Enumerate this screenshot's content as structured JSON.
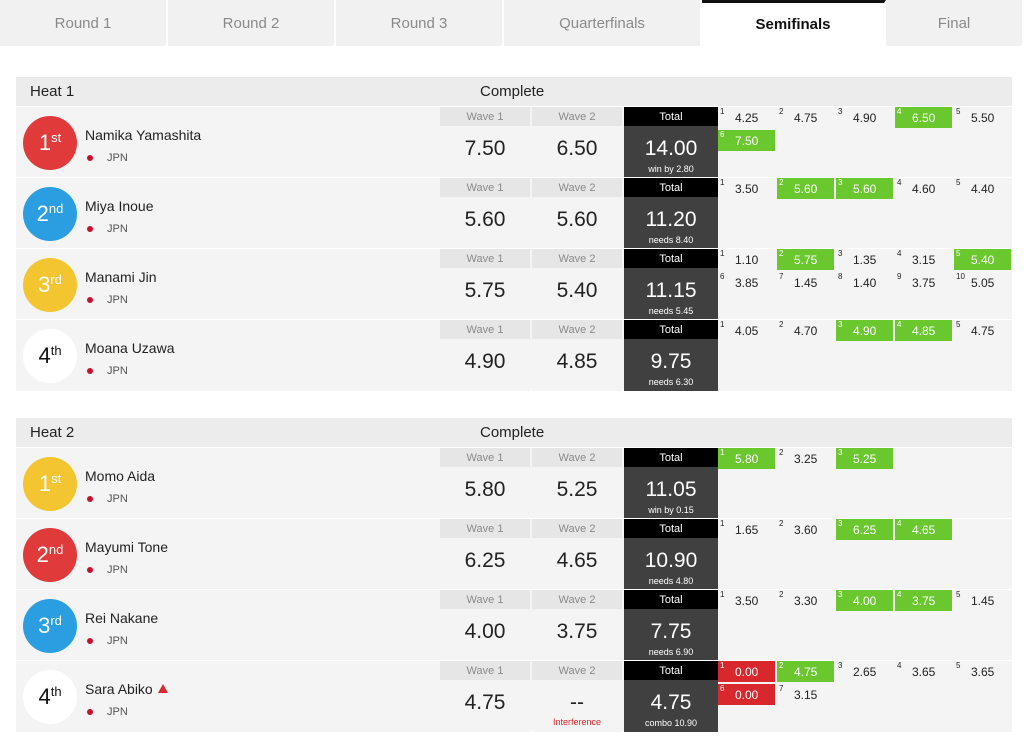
{
  "tabs": [
    {
      "label": "Round 1",
      "active": false
    },
    {
      "label": "Round 2",
      "active": false
    },
    {
      "label": "Round 3",
      "active": false
    },
    {
      "label": "Quarterfinals",
      "active": false
    },
    {
      "label": "Semifinals",
      "active": true
    },
    {
      "label": "Final",
      "active": false
    }
  ],
  "colors": {
    "red": "#e03a3a",
    "blue": "#2a9ee0",
    "yellow": "#f2c531",
    "white": "#ffffff",
    "green_score": "#6bc72e",
    "red_score": "#d9272e",
    "total_bg": "#404040"
  },
  "labels": {
    "wave1": "Wave 1",
    "wave2": "Wave 2",
    "total": "Total"
  },
  "heats": [
    {
      "name": "Heat 1",
      "status": "Complete",
      "athletes": [
        {
          "place": "1",
          "suffix": "st",
          "color": "red",
          "name": "Namika Yamashita",
          "country": "JPN",
          "warning": false,
          "wave1": "7.50",
          "wave2": "6.50",
          "wave2_note": "",
          "total": "14.00",
          "sub": "win by 2.80",
          "scores": [
            {
              "i": "1",
              "v": "4.25",
              "s": ""
            },
            {
              "i": "2",
              "v": "4.75",
              "s": ""
            },
            {
              "i": "3",
              "v": "4.90",
              "s": ""
            },
            {
              "i": "4",
              "v": "6.50",
              "s": "green"
            },
            {
              "i": "5",
              "v": "5.50",
              "s": ""
            },
            {
              "i": "6",
              "v": "7.50",
              "s": "green"
            }
          ]
        },
        {
          "place": "2",
          "suffix": "nd",
          "color": "blue",
          "name": "Miya Inoue",
          "country": "JPN",
          "warning": false,
          "wave1": "5.60",
          "wave2": "5.60",
          "wave2_note": "",
          "total": "11.20",
          "sub": "needs 8.40",
          "scores": [
            {
              "i": "1",
              "v": "3.50",
              "s": ""
            },
            {
              "i": "2",
              "v": "5.60",
              "s": "green"
            },
            {
              "i": "3",
              "v": "5.60",
              "s": "green"
            },
            {
              "i": "4",
              "v": "4.60",
              "s": ""
            },
            {
              "i": "5",
              "v": "4.40",
              "s": ""
            }
          ]
        },
        {
          "place": "3",
          "suffix": "rd",
          "color": "yellow",
          "name": "Manami Jin",
          "country": "JPN",
          "warning": false,
          "wave1": "5.75",
          "wave2": "5.40",
          "wave2_note": "",
          "total": "11.15",
          "sub": "needs 5.45",
          "scores": [
            {
              "i": "1",
              "v": "1.10",
              "s": ""
            },
            {
              "i": "2",
              "v": "5.75",
              "s": "green"
            },
            {
              "i": "3",
              "v": "1.35",
              "s": ""
            },
            {
              "i": "4",
              "v": "3.15",
              "s": ""
            },
            {
              "i": "5",
              "v": "5.40",
              "s": "green"
            },
            {
              "i": "6",
              "v": "3.85",
              "s": ""
            },
            {
              "i": "7",
              "v": "1.45",
              "s": ""
            },
            {
              "i": "8",
              "v": "1.40",
              "s": ""
            },
            {
              "i": "9",
              "v": "3.75",
              "s": ""
            },
            {
              "i": "10",
              "v": "5.05",
              "s": ""
            }
          ]
        },
        {
          "place": "4",
          "suffix": "th",
          "color": "white",
          "name": "Moana Uzawa",
          "country": "JPN",
          "warning": false,
          "wave1": "4.90",
          "wave2": "4.85",
          "wave2_note": "",
          "total": "9.75",
          "sub": "needs 6.30",
          "scores": [
            {
              "i": "1",
              "v": "4.05",
              "s": ""
            },
            {
              "i": "2",
              "v": "4.70",
              "s": ""
            },
            {
              "i": "3",
              "v": "4.90",
              "s": "green"
            },
            {
              "i": "4",
              "v": "4.85",
              "s": "green"
            },
            {
              "i": "5",
              "v": "4.75",
              "s": ""
            }
          ]
        }
      ]
    },
    {
      "name": "Heat 2",
      "status": "Complete",
      "athletes": [
        {
          "place": "1",
          "suffix": "st",
          "color": "yellow",
          "name": "Momo Aida",
          "country": "JPN",
          "warning": false,
          "wave1": "5.80",
          "wave2": "5.25",
          "wave2_note": "",
          "total": "11.05",
          "sub": "win by 0.15",
          "scores": [
            {
              "i": "1",
              "v": "5.80",
              "s": "green"
            },
            {
              "i": "2",
              "v": "3.25",
              "s": ""
            },
            {
              "i": "3",
              "v": "5.25",
              "s": "green"
            }
          ]
        },
        {
          "place": "2",
          "suffix": "nd",
          "color": "red",
          "name": "Mayumi Tone",
          "country": "JPN",
          "warning": false,
          "wave1": "6.25",
          "wave2": "4.65",
          "wave2_note": "",
          "total": "10.90",
          "sub": "needs 4.80",
          "scores": [
            {
              "i": "1",
              "v": "1.65",
              "s": ""
            },
            {
              "i": "2",
              "v": "3.60",
              "s": ""
            },
            {
              "i": "3",
              "v": "6.25",
              "s": "green"
            },
            {
              "i": "4",
              "v": "4.65",
              "s": "green"
            }
          ]
        },
        {
          "place": "3",
          "suffix": "rd",
          "color": "blue",
          "name": "Rei Nakane",
          "country": "JPN",
          "warning": false,
          "wave1": "4.00",
          "wave2": "3.75",
          "wave2_note": "",
          "total": "7.75",
          "sub": "needs 6.90",
          "scores": [
            {
              "i": "1",
              "v": "3.50",
              "s": ""
            },
            {
              "i": "2",
              "v": "3.30",
              "s": ""
            },
            {
              "i": "3",
              "v": "4.00",
              "s": "green"
            },
            {
              "i": "4",
              "v": "3.75",
              "s": "green"
            },
            {
              "i": "5",
              "v": "1.45",
              "s": ""
            }
          ]
        },
        {
          "place": "4",
          "suffix": "th",
          "color": "white",
          "name": "Sara Abiko",
          "country": "JPN",
          "warning": true,
          "wave1": "4.75",
          "wave2": "--",
          "wave2_note": "Interference",
          "total": "4.75",
          "sub": "combo 10.90",
          "scores": [
            {
              "i": "1",
              "v": "0.00",
              "s": "red"
            },
            {
              "i": "2",
              "v": "4.75",
              "s": "green"
            },
            {
              "i": "3",
              "v": "2.65",
              "s": ""
            },
            {
              "i": "4",
              "v": "3.65",
              "s": ""
            },
            {
              "i": "5",
              "v": "3.65",
              "s": ""
            },
            {
              "i": "6",
              "v": "0.00",
              "s": "red"
            },
            {
              "i": "7",
              "v": "3.15",
              "s": ""
            }
          ]
        }
      ]
    }
  ]
}
